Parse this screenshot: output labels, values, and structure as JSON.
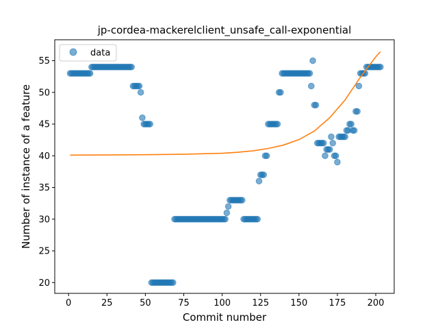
{
  "chart_data": {
    "type": "scatter",
    "title": "jp-cordea-mackerelclient_unsafe_call-exponential",
    "xlabel": "Commit number",
    "ylabel": "Number of instance of a feature",
    "xlim": [
      -9,
      212
    ],
    "ylim": [
      18.3,
      58.3
    ],
    "xticks": [
      0,
      25,
      50,
      75,
      100,
      125,
      150,
      175,
      200
    ],
    "yticks": [
      20,
      25,
      30,
      35,
      40,
      45,
      50,
      55
    ],
    "grid": false,
    "legend": {
      "position": "top-left",
      "entries": [
        "data"
      ]
    },
    "colors": {
      "data": "#1f77b4",
      "fit": "#ff7f0e"
    },
    "series": [
      {
        "name": "data",
        "kind": "scatter",
        "points": [
          [
            1,
            53
          ],
          [
            2,
            53
          ],
          [
            3,
            53
          ],
          [
            4,
            53
          ],
          [
            5,
            53
          ],
          [
            6,
            53
          ],
          [
            7,
            53
          ],
          [
            8,
            53
          ],
          [
            9,
            53
          ],
          [
            10,
            53
          ],
          [
            11,
            53
          ],
          [
            12,
            53
          ],
          [
            13,
            53
          ],
          [
            14,
            53
          ],
          [
            15,
            54
          ],
          [
            16,
            54
          ],
          [
            17,
            54
          ],
          [
            18,
            54
          ],
          [
            19,
            54
          ],
          [
            20,
            54
          ],
          [
            21,
            54
          ],
          [
            22,
            54
          ],
          [
            23,
            54
          ],
          [
            24,
            54
          ],
          [
            25,
            54
          ],
          [
            26,
            54
          ],
          [
            27,
            54
          ],
          [
            28,
            54
          ],
          [
            29,
            54
          ],
          [
            30,
            54
          ],
          [
            31,
            54
          ],
          [
            32,
            54
          ],
          [
            33,
            54
          ],
          [
            34,
            54
          ],
          [
            35,
            54
          ],
          [
            36,
            54
          ],
          [
            37,
            54
          ],
          [
            38,
            54
          ],
          [
            39,
            54
          ],
          [
            40,
            54
          ],
          [
            41,
            54
          ],
          [
            42,
            51
          ],
          [
            43,
            51
          ],
          [
            44,
            51
          ],
          [
            45,
            51
          ],
          [
            46,
            51
          ],
          [
            47,
            50
          ],
          [
            48,
            46
          ],
          [
            49,
            45
          ],
          [
            50,
            45
          ],
          [
            51,
            45
          ],
          [
            52,
            45
          ],
          [
            53,
            45
          ],
          [
            54,
            20
          ],
          [
            55,
            20
          ],
          [
            56,
            20
          ],
          [
            57,
            20
          ],
          [
            58,
            20
          ],
          [
            59,
            20
          ],
          [
            60,
            20
          ],
          [
            61,
            20
          ],
          [
            62,
            20
          ],
          [
            63,
            20
          ],
          [
            64,
            20
          ],
          [
            65,
            20
          ],
          [
            66,
            20
          ],
          [
            67,
            20
          ],
          [
            68,
            20
          ],
          [
            69,
            30
          ],
          [
            70,
            30
          ],
          [
            71,
            30
          ],
          [
            72,
            30
          ],
          [
            73,
            30
          ],
          [
            74,
            30
          ],
          [
            75,
            30
          ],
          [
            76,
            30
          ],
          [
            77,
            30
          ],
          [
            78,
            30
          ],
          [
            79,
            30
          ],
          [
            80,
            30
          ],
          [
            81,
            30
          ],
          [
            82,
            30
          ],
          [
            83,
            30
          ],
          [
            84,
            30
          ],
          [
            85,
            30
          ],
          [
            86,
            30
          ],
          [
            87,
            30
          ],
          [
            88,
            30
          ],
          [
            89,
            30
          ],
          [
            90,
            30
          ],
          [
            91,
            30
          ],
          [
            92,
            30
          ],
          [
            93,
            30
          ],
          [
            94,
            30
          ],
          [
            95,
            30
          ],
          [
            96,
            30
          ],
          [
            97,
            30
          ],
          [
            98,
            30
          ],
          [
            99,
            30
          ],
          [
            100,
            30
          ],
          [
            101,
            30
          ],
          [
            102,
            30
          ],
          [
            103,
            31
          ],
          [
            104,
            32
          ],
          [
            105,
            33
          ],
          [
            106,
            33
          ],
          [
            107,
            33
          ],
          [
            108,
            33
          ],
          [
            109,
            33
          ],
          [
            110,
            33
          ],
          [
            111,
            33
          ],
          [
            112,
            33
          ],
          [
            113,
            33
          ],
          [
            114,
            30
          ],
          [
            115,
            30
          ],
          [
            116,
            30
          ],
          [
            117,
            30
          ],
          [
            118,
            30
          ],
          [
            119,
            30
          ],
          [
            120,
            30
          ],
          [
            121,
            30
          ],
          [
            122,
            30
          ],
          [
            123,
            30
          ],
          [
            124,
            36
          ],
          [
            125,
            37
          ],
          [
            126,
            37
          ],
          [
            127,
            37
          ],
          [
            128,
            40
          ],
          [
            129,
            40
          ],
          [
            130,
            45
          ],
          [
            131,
            45
          ],
          [
            132,
            45
          ],
          [
            133,
            45
          ],
          [
            134,
            45
          ],
          [
            135,
            45
          ],
          [
            136,
            45
          ],
          [
            137,
            50
          ],
          [
            138,
            50
          ],
          [
            139,
            53
          ],
          [
            140,
            53
          ],
          [
            141,
            53
          ],
          [
            142,
            53
          ],
          [
            143,
            53
          ],
          [
            144,
            53
          ],
          [
            145,
            53
          ],
          [
            146,
            53
          ],
          [
            147,
            53
          ],
          [
            148,
            53
          ],
          [
            149,
            53
          ],
          [
            150,
            53
          ],
          [
            151,
            53
          ],
          [
            152,
            53
          ],
          [
            153,
            53
          ],
          [
            154,
            53
          ],
          [
            155,
            53
          ],
          [
            156,
            53
          ],
          [
            157,
            53
          ],
          [
            158,
            51
          ],
          [
            159,
            55
          ],
          [
            160,
            48
          ],
          [
            161,
            48
          ],
          [
            162,
            42
          ],
          [
            163,
            42
          ],
          [
            164,
            42
          ],
          [
            165,
            42
          ],
          [
            166,
            42
          ],
          [
            167,
            40
          ],
          [
            168,
            41
          ],
          [
            169,
            41
          ],
          [
            170,
            41
          ],
          [
            171,
            43
          ],
          [
            172,
            42
          ],
          [
            173,
            40
          ],
          [
            174,
            40
          ],
          [
            175,
            39
          ],
          [
            176,
            43
          ],
          [
            177,
            43
          ],
          [
            178,
            43
          ],
          [
            179,
            43
          ],
          [
            180,
            43
          ],
          [
            181,
            44
          ],
          [
            182,
            44
          ],
          [
            183,
            45
          ],
          [
            184,
            45
          ],
          [
            185,
            44
          ],
          [
            186,
            44
          ],
          [
            187,
            47
          ],
          [
            188,
            47
          ],
          [
            189,
            51
          ],
          [
            190,
            53
          ],
          [
            191,
            53
          ],
          [
            192,
            53
          ],
          [
            193,
            53
          ],
          [
            194,
            54
          ],
          [
            195,
            54
          ],
          [
            196,
            54
          ],
          [
            197,
            54
          ],
          [
            198,
            54
          ],
          [
            199,
            54
          ],
          [
            200,
            54
          ],
          [
            201,
            54
          ],
          [
            202,
            54
          ],
          [
            203,
            54
          ]
        ]
      },
      {
        "name": "",
        "kind": "line",
        "model": "exponential",
        "points": [
          [
            1,
            40.1
          ],
          [
            25,
            40.13
          ],
          [
            50,
            40.17
          ],
          [
            75,
            40.24
          ],
          [
            100,
            40.4
          ],
          [
            110,
            40.55
          ],
          [
            120,
            40.78
          ],
          [
            130,
            41.15
          ],
          [
            140,
            41.7
          ],
          [
            150,
            42.55
          ],
          [
            160,
            43.9
          ],
          [
            170,
            46.0
          ],
          [
            180,
            48.8
          ],
          [
            185,
            50.6
          ],
          [
            190,
            52.4
          ],
          [
            195,
            54.0
          ],
          [
            200,
            55.6
          ],
          [
            203,
            56.4
          ]
        ]
      }
    ]
  }
}
